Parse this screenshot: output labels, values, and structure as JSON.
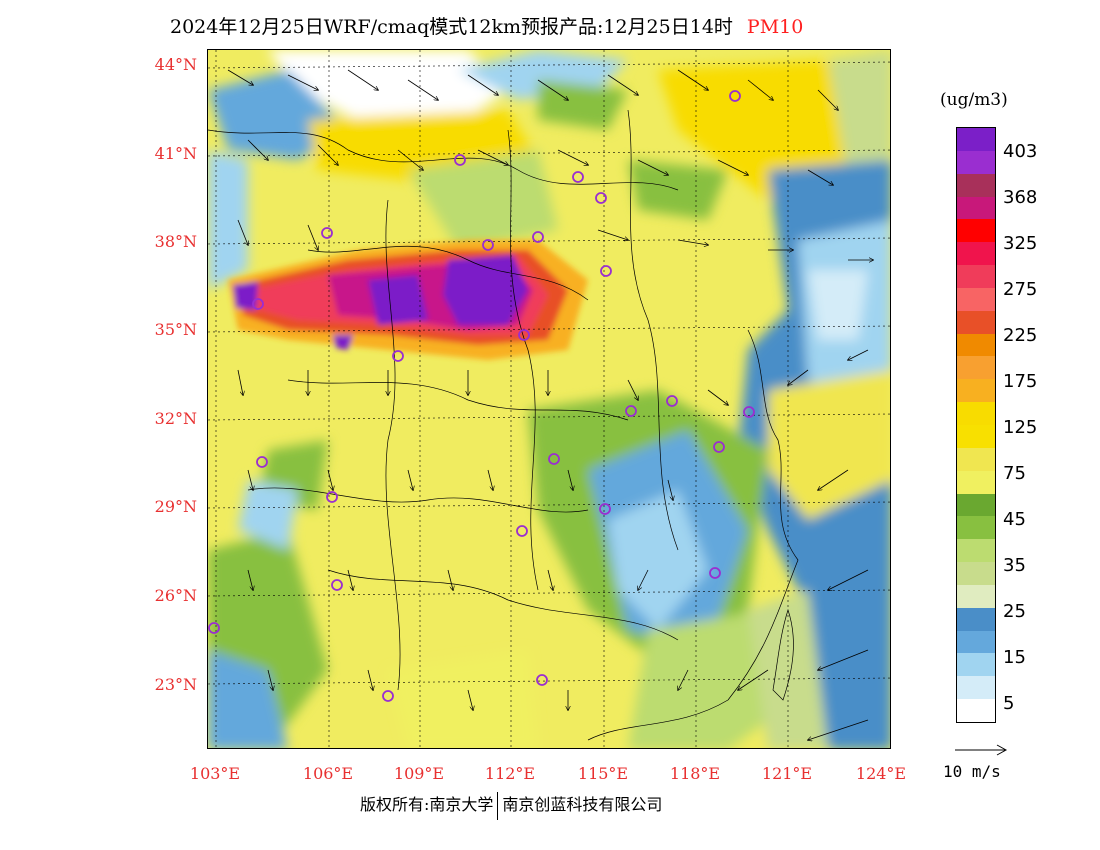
{
  "title": {
    "main": "2024年12月25日WRF/cmaq模式12km预报产品:12月25日14时",
    "variable": "PM10"
  },
  "axes": {
    "lat_labels": [
      "44°N",
      "41°N",
      "38°N",
      "35°N",
      "32°N",
      "29°N",
      "26°N",
      "23°N"
    ],
    "lon_labels": [
      "103°E",
      "106°E",
      "109°E",
      "112°E",
      "115°E",
      "118°E",
      "121°E",
      "124°E"
    ]
  },
  "legend": {
    "unit": "(ug/m3)",
    "labels": [
      "403",
      "368",
      "325",
      "275",
      "225",
      "175",
      "125",
      "75",
      "45",
      "35",
      "25",
      "15",
      "5"
    ],
    "colors": [
      "#7b1fc8",
      "#9a2ed0",
      "#a8305a",
      "#c8187a",
      "#ff0000",
      "#f0144c",
      "#f03c5a",
      "#f86464",
      "#e85028",
      "#f08a00",
      "#f8a030",
      "#f8b020",
      "#f8dc00",
      "#f8e000",
      "#f0e650",
      "#f0f060",
      "#6aa830",
      "#88c040",
      "#bcdc70",
      "#c8dc8c",
      "#e0ecc0",
      "#4a8ec8",
      "#64a8dc",
      "#a0d4f0",
      "#d4ecf8",
      "#ffffff"
    ]
  },
  "wind_reference": {
    "label": "10 m/s"
  },
  "credit": {
    "left": "版权所有:南京大学",
    "right": "南京创蓝科技有限公司"
  },
  "monitoring_sites": 30
}
